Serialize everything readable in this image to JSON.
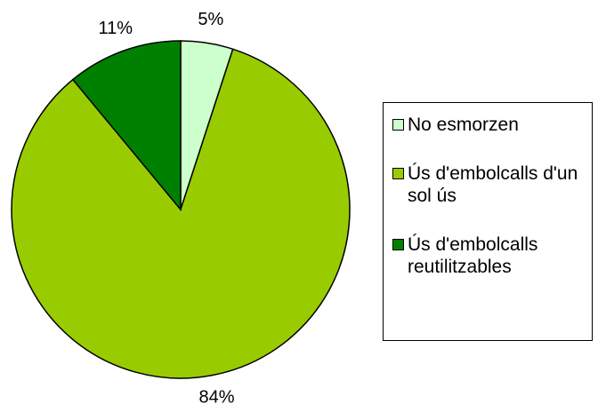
{
  "chart_data": {
    "type": "pie",
    "categories": [
      "No esmorzen",
      "Ús d'embolcalls d'un sol ús",
      "Ús d'embolcalls reutilitzables"
    ],
    "values": [
      5,
      84,
      11
    ],
    "value_labels": [
      "5%",
      "84%",
      "11%"
    ],
    "colors": [
      "#ccffcc",
      "#99cc00",
      "#008000"
    ],
    "legend": "right"
  }
}
